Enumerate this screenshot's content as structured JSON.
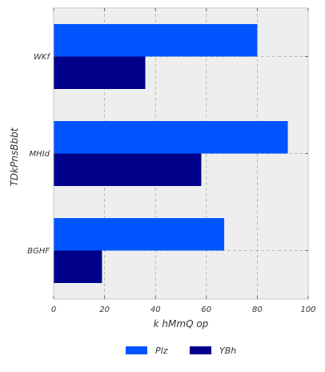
{
  "chart_data": {
    "type": "bar",
    "orientation": "horizontal",
    "title": "",
    "xlabel": "k hMmQ op",
    "ylabel": "TDkPnsBbbt",
    "categories": [
      "WKf",
      "MHId",
      "BGHF"
    ],
    "series": [
      {
        "name": "Plz",
        "values": [
          80,
          92,
          67
        ],
        "color": "#0055FF"
      },
      {
        "name": "YBh",
        "values": [
          36,
          58,
          19
        ],
        "color": "#00008B"
      }
    ],
    "xlim": [
      0,
      100
    ],
    "xticks": [
      "0",
      "20",
      "40",
      "60",
      "80",
      "100"
    ],
    "grid": true,
    "legend": "bottom-center"
  }
}
